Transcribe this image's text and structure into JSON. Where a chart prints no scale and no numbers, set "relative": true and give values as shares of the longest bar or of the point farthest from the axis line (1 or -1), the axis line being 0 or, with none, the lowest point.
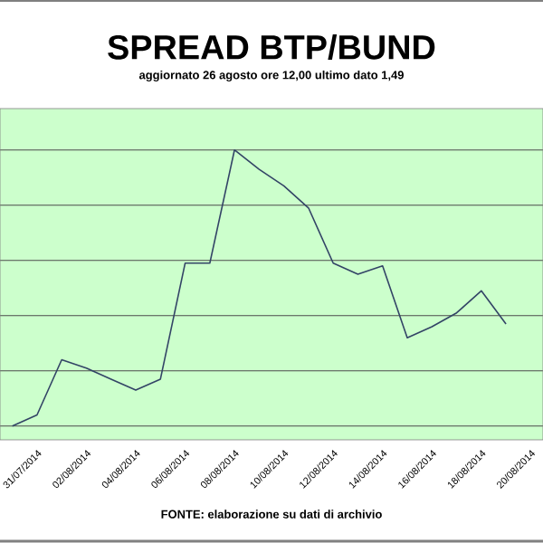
{
  "chart_data": {
    "type": "line",
    "title": "SPREAD BTP/BUND",
    "subtitle": "aggiornato 26 agosto ore 12,00 ultimo dato 1,49",
    "annotations": [
      "FONTE: elaborazione su dati di archivio"
    ],
    "relative": true,
    "grid": "y",
    "marker": "none",
    "line_style": "solid",
    "categories": [
      null,
      "31/07/2014",
      null,
      "02/08/2014",
      null,
      "04/08/2014",
      null,
      "06/08/2014",
      null,
      "08/08/2014",
      null,
      "10/08/2014",
      null,
      "12/08/2014",
      null,
      "14/08/2014",
      null,
      "16/08/2014",
      null,
      "18/08/2014",
      null,
      "20/08/2014"
    ],
    "series": [
      {
        "color": "#334466",
        "values": [
          0,
          0.04,
          0.24,
          0.21,
          0.17,
          0.13,
          0.17,
          0.59,
          0.59,
          1,
          0.93,
          0.87,
          0.79,
          0.59,
          0.55,
          0.58,
          0.32,
          0.36,
          0.41,
          0.49,
          0.37,
          null
        ]
      }
    ]
  }
}
